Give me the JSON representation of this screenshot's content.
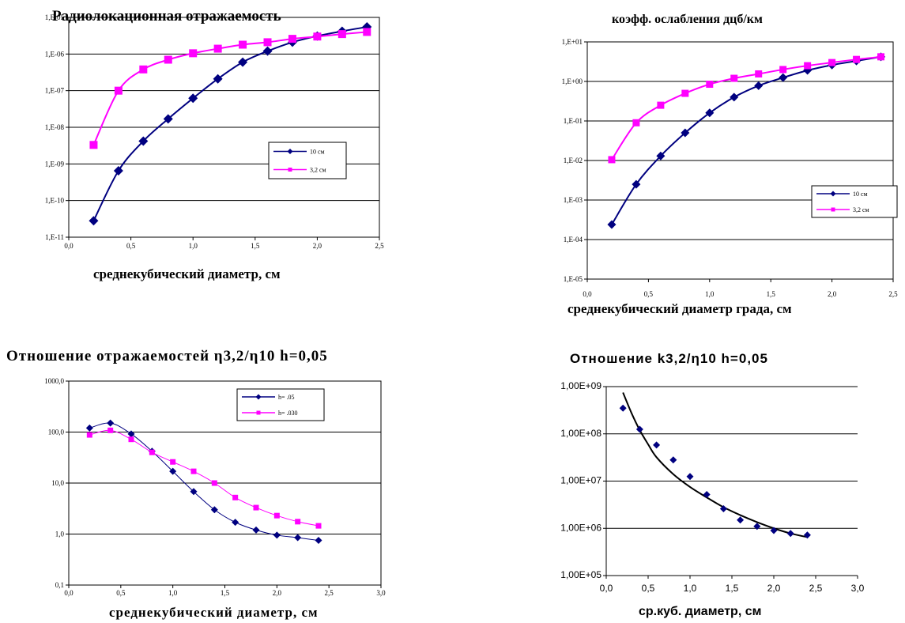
{
  "chart_data": [
    {
      "type": "line",
      "title": "Радиолокационная отражаемость",
      "xlabel": "среднекубический диаметр, см",
      "ylabel": "",
      "yscale": "log",
      "xlim": [
        0,
        2.5
      ],
      "ylim": [
        1e-11,
        1e-05
      ],
      "x_ticks": [
        "0,0",
        "0,5",
        "1,0",
        "1,5",
        "2,0",
        "2,5"
      ],
      "y_ticks": [
        "1,E-11",
        "1,E-10",
        "1,E-09",
        "1,E-08",
        "1,E-07",
        "1,E-06",
        "1,E-05"
      ],
      "grid": "horizontal",
      "legend_position": "right",
      "series": [
        {
          "name": "10 см",
          "color": "#000080",
          "marker": "diamond",
          "x": [
            0.2,
            0.4,
            0.6,
            0.8,
            1.0,
            1.2,
            1.4,
            1.6,
            1.8,
            2.0,
            2.2,
            2.4
          ],
          "y": [
            2.8e-11,
            6.5e-10,
            4.2e-09,
            1.7e-08,
            6.2e-08,
            2.1e-07,
            6e-07,
            1.2e-06,
            2.1e-06,
            3.1e-06,
            4.2e-06,
            5.5e-06
          ]
        },
        {
          "name": "3,2 см",
          "color": "#ff00ff",
          "marker": "square",
          "x": [
            0.2,
            0.4,
            0.6,
            0.8,
            1.0,
            1.2,
            1.4,
            1.6,
            1.8,
            2.0,
            2.2,
            2.4
          ],
          "y": [
            3.3e-09,
            1e-07,
            3.8e-07,
            7e-07,
            1.05e-06,
            1.4e-06,
            1.8e-06,
            2.1e-06,
            2.6e-06,
            3e-06,
            3.5e-06,
            4e-06
          ]
        }
      ]
    },
    {
      "type": "line",
      "title": "коэфф. ослабления дцб/км",
      "xlabel": "среднекубический диаметр града, см",
      "ylabel": "",
      "yscale": "log",
      "xlim": [
        0,
        2.5
      ],
      "ylim": [
        1e-05,
        10
      ],
      "x_ticks": [
        "0,0",
        "0,5",
        "1,0",
        "1,5",
        "2,0",
        "2,5"
      ],
      "y_ticks": [
        "1,E-05",
        "1,E-04",
        "1,E-03",
        "1,E-02",
        "1,E-01",
        "1,E+00",
        "1,E+01"
      ],
      "grid": "horizontal",
      "legend_position": "bottom-right",
      "series": [
        {
          "name": "10 см",
          "color": "#000080",
          "marker": "diamond",
          "x": [
            0.2,
            0.4,
            0.6,
            0.8,
            1.0,
            1.2,
            1.4,
            1.6,
            1.8,
            2.0,
            2.2,
            2.4
          ],
          "y": [
            0.00024,
            0.0025,
            0.013,
            0.05,
            0.16,
            0.4,
            0.78,
            1.25,
            1.9,
            2.6,
            3.3,
            4.2
          ]
        },
        {
          "name": "3,2 см",
          "color": "#ff00ff",
          "marker": "square",
          "x": [
            0.2,
            0.4,
            0.6,
            0.8,
            1.0,
            1.2,
            1.4,
            1.6,
            1.8,
            2.0,
            2.2,
            2.4
          ],
          "y": [
            0.0105,
            0.09,
            0.25,
            0.5,
            0.85,
            1.2,
            1.55,
            2.0,
            2.5,
            3.0,
            3.6,
            4.2
          ]
        }
      ]
    },
    {
      "type": "line",
      "title": "Отношение отражаемостей η3,2/η10 h=0,05",
      "xlabel": "среднекубический диаметр, см",
      "ylabel": "",
      "yscale": "log",
      "xlim": [
        0,
        3.0
      ],
      "ylim": [
        0.1,
        1000
      ],
      "x_ticks": [
        "0,0",
        "0,5",
        "1,0",
        "1,5",
        "2,0",
        "2,5",
        "3,0"
      ],
      "y_ticks": [
        "0,1",
        "1,0",
        "10,0",
        "100,0",
        "1000,0"
      ],
      "grid": "horizontal",
      "legend_position": "top-right",
      "series": [
        {
          "name": "h= .05",
          "color": "#000080",
          "marker": "diamond",
          "x": [
            0.2,
            0.4,
            0.6,
            0.8,
            1.0,
            1.2,
            1.4,
            1.6,
            1.8,
            2.0,
            2.2,
            2.4
          ],
          "y": [
            120,
            150,
            92,
            42,
            17,
            6.8,
            3.0,
            1.7,
            1.2,
            0.95,
            0.85,
            0.75
          ]
        },
        {
          "name": "h= .030",
          "color": "#ff00ff",
          "marker": "square",
          "x": [
            0.2,
            0.4,
            0.6,
            0.8,
            1.0,
            1.2,
            1.4,
            1.6,
            1.8,
            2.0,
            2.2,
            2.4
          ],
          "y": [
            88,
            108,
            72,
            40,
            26,
            17,
            10,
            5.2,
            3.3,
            2.3,
            1.75,
            1.45
          ]
        }
      ]
    },
    {
      "type": "scatter",
      "title": "Отношение k3,2/η10 h=0,05",
      "xlabel": "ср.куб. диаметр, см",
      "ylabel": "",
      "yscale": "log",
      "xlim": [
        0,
        3.0
      ],
      "ylim": [
        100000,
        1000000000
      ],
      "x_ticks": [
        "0,0",
        "0,5",
        "1,0",
        "1,5",
        "2,0",
        "2,5",
        "3,0"
      ],
      "y_ticks": [
        "1,00E+05",
        "1,00E+06",
        "1,00E+07",
        "1,00E+08",
        "1,00E+09"
      ],
      "grid": "horizontal",
      "series": [
        {
          "color": "#000080",
          "marker": "diamond",
          "x": [
            0.2,
            0.4,
            0.6,
            0.8,
            1.0,
            1.2,
            1.4,
            1.6,
            1.8,
            2.0,
            2.2,
            2.4
          ],
          "y": [
            350000000,
            125000000,
            58000000,
            28000000,
            12500000,
            5200000,
            2600000,
            1500000,
            1100000,
            900000,
            780000,
            720000
          ]
        }
      ],
      "trendline": {
        "color": "#000000",
        "x": [
          0.2,
          0.3,
          0.4,
          0.5,
          0.6,
          0.8,
          1.0,
          1.2,
          1.4,
          1.6,
          1.8,
          2.0,
          2.2,
          2.4
        ],
        "y": [
          750000000,
          280000000,
          120000000,
          60000000,
          32000000,
          14000000,
          7500000,
          4500000,
          2800000,
          1900000,
          1350000,
          1000000,
          780000,
          650000
        ]
      }
    }
  ]
}
